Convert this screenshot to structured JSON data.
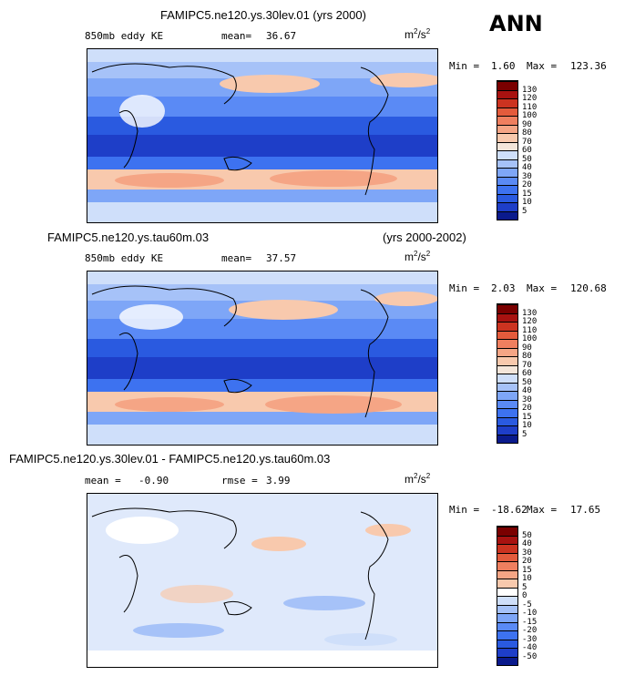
{
  "chart_data": [
    {
      "type": "heatmap",
      "title": "FAMIPC5.ne120.ys.30lev.01 (yrs 2000)",
      "variable": "850mb eddy KE",
      "mean_label": "mean=",
      "mean": "36.67",
      "units_base": "m",
      "units_exp1": "2",
      "units_sep": "/s",
      "units_exp2": "2",
      "min_label": "Min =",
      "min": "1.60",
      "max_label": "Max =",
      "max": "123.36",
      "colorbar_levels": [
        5,
        10,
        15,
        20,
        30,
        40,
        50,
        60,
        70,
        80,
        90,
        100,
        110,
        120,
        130
      ],
      "colorbar_colors": [
        "#0a1a8c",
        "#1e3ec8",
        "#2a5ae0",
        "#3d72f0",
        "#5a8af5",
        "#7ea6f7",
        "#a6c2f8",
        "#cfdffa",
        "#f4e6da",
        "#f8c9ad",
        "#f5a585",
        "#ef7f5f",
        "#e45b3c",
        "#cc3320",
        "#a81210",
        "#7a0000"
      ]
    },
    {
      "type": "heatmap",
      "title_left": "FAMIPC5.ne120.ys.tau60m.03",
      "title_right": "(yrs 2000-2002)",
      "variable": "850mb eddy KE",
      "mean_label": "mean=",
      "mean": "37.57",
      "units_base": "m",
      "units_exp1": "2",
      "units_sep": "/s",
      "units_exp2": "2",
      "min_label": "Min =",
      "min": "2.03",
      "max_label": "Max =",
      "max": "120.68",
      "colorbar_levels": [
        5,
        10,
        15,
        20,
        30,
        40,
        50,
        60,
        70,
        80,
        90,
        100,
        110,
        120,
        130
      ],
      "colorbar_colors": [
        "#0a1a8c",
        "#1e3ec8",
        "#2a5ae0",
        "#3d72f0",
        "#5a8af5",
        "#7ea6f7",
        "#a6c2f8",
        "#cfdffa",
        "#f4e6da",
        "#f8c9ad",
        "#f5a585",
        "#ef7f5f",
        "#e45b3c",
        "#cc3320",
        "#a81210",
        "#7a0000"
      ]
    },
    {
      "type": "heatmap",
      "title": "FAMIPC5.ne120.ys.30lev.01 - FAMIPC5.ne120.ys.tau60m.03",
      "mean_label": "mean =",
      "mean": "-0.90",
      "rmse_label": "rmse =",
      "rmse": "3.99",
      "units_base": "m",
      "units_exp1": "2",
      "units_sep": "/s",
      "units_exp2": "2",
      "min_label": "Min =",
      "min": "-18.62",
      "max_label": "Max =",
      "max": "17.65",
      "colorbar_levels": [
        -50,
        -40,
        -30,
        -20,
        -15,
        -10,
        -5,
        0,
        5,
        10,
        15,
        20,
        30,
        40,
        50
      ],
      "colorbar_colors": [
        "#0a1a8c",
        "#1e3ec8",
        "#2a5ae0",
        "#3d72f0",
        "#5a8af5",
        "#7ea6f7",
        "#a6c2f8",
        "#cfdffa",
        "#ffffff",
        "#f8c9ad",
        "#f5a585",
        "#ef7f5f",
        "#e45b3c",
        "#cc3320",
        "#a81210",
        "#7a0000"
      ]
    }
  ],
  "season": "ANN"
}
